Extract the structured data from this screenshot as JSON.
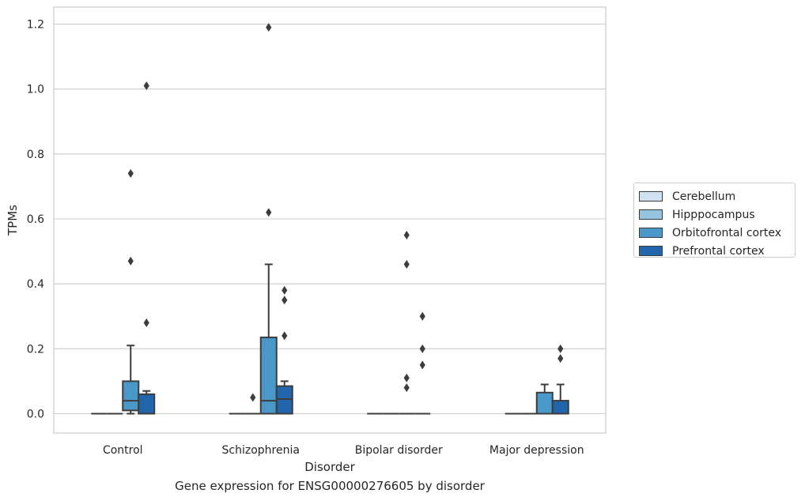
{
  "chart_data": {
    "type": "box",
    "title": "",
    "caption": "Gene expression for ENSG00000276605 by disorder",
    "xlabel": "Disorder",
    "ylabel": "TPMs",
    "ylim": [
      -0.06,
      1.25
    ],
    "yticks": [
      0.0,
      0.2,
      0.4,
      0.6,
      0.8,
      1.0,
      1.2
    ],
    "ytick_labels": [
      "0.0",
      "0.2",
      "0.4",
      "0.6",
      "0.8",
      "1.0",
      "1.2"
    ],
    "categories": [
      "Control",
      "Schizophrenia",
      "Bipolar disorder",
      "Major depression"
    ],
    "grid": true,
    "legend_position": "right",
    "series": [
      {
        "name": "Cerebellum",
        "color": "#d0e1f2",
        "boxes": [
          {
            "q1": 0,
            "median": 0,
            "q3": 0,
            "whisker_low": 0,
            "whisker_high": 0,
            "outliers": []
          },
          {
            "q1": 0,
            "median": 0,
            "q3": 0,
            "whisker_low": 0,
            "whisker_high": 0,
            "outliers": []
          },
          {
            "q1": 0,
            "median": 0,
            "q3": 0,
            "whisker_low": 0,
            "whisker_high": 0,
            "outliers": []
          },
          {
            "q1": 0,
            "median": 0,
            "q3": 0,
            "whisker_low": 0,
            "whisker_high": 0,
            "outliers": []
          }
        ]
      },
      {
        "name": "Hipppocampus",
        "color": "#94c4df",
        "boxes": [
          {
            "q1": 0,
            "median": 0,
            "q3": 0,
            "whisker_low": 0,
            "whisker_high": 0,
            "outliers": []
          },
          {
            "q1": 0,
            "median": 0,
            "q3": 0,
            "whisker_low": 0,
            "whisker_high": 0,
            "outliers": [
              0.05
            ]
          },
          {
            "q1": 0,
            "median": 0,
            "q3": 0,
            "whisker_low": 0,
            "whisker_high": 0,
            "outliers": []
          },
          {
            "q1": 0,
            "median": 0,
            "q3": 0,
            "whisker_low": 0,
            "whisker_high": 0,
            "outliers": []
          }
        ]
      },
      {
        "name": "Orbitofrontal cortex",
        "color": "#4a98c9",
        "boxes": [
          {
            "q1": 0.01,
            "median": 0.04,
            "q3": 0.1,
            "whisker_low": 0,
            "whisker_high": 0.21,
            "outliers": [
              0.47,
              0.74
            ]
          },
          {
            "q1": 0,
            "median": 0.04,
            "q3": 0.235,
            "whisker_low": 0,
            "whisker_high": 0.46,
            "outliers": [
              0.62,
              1.19
            ]
          },
          {
            "q1": 0,
            "median": 0,
            "q3": 0,
            "whisker_low": 0,
            "whisker_high": 0,
            "outliers": [
              0.08,
              0.11,
              0.46,
              0.55
            ]
          },
          {
            "q1": 0,
            "median": 0,
            "q3": 0.065,
            "whisker_low": 0,
            "whisker_high": 0.09,
            "outliers": []
          }
        ]
      },
      {
        "name": "Prefrontal cortex",
        "color": "#2166ac",
        "boxes": [
          {
            "q1": 0,
            "median": 0,
            "q3": 0.06,
            "whisker_low": 0,
            "whisker_high": 0.07,
            "outliers": [
              0.28,
              1.01
            ]
          },
          {
            "q1": 0,
            "median": 0.045,
            "q3": 0.085,
            "whisker_low": 0,
            "whisker_high": 0.1,
            "outliers": [
              0.24,
              0.35,
              0.38
            ]
          },
          {
            "q1": 0,
            "median": 0,
            "q3": 0,
            "whisker_low": 0,
            "whisker_high": 0,
            "outliers": [
              0.15,
              0.2,
              0.3
            ]
          },
          {
            "q1": 0,
            "median": 0,
            "q3": 0.04,
            "whisker_low": 0,
            "whisker_high": 0.09,
            "outliers": [
              0.17,
              0.2
            ]
          }
        ]
      }
    ],
    "extra_outliers_note": ""
  }
}
